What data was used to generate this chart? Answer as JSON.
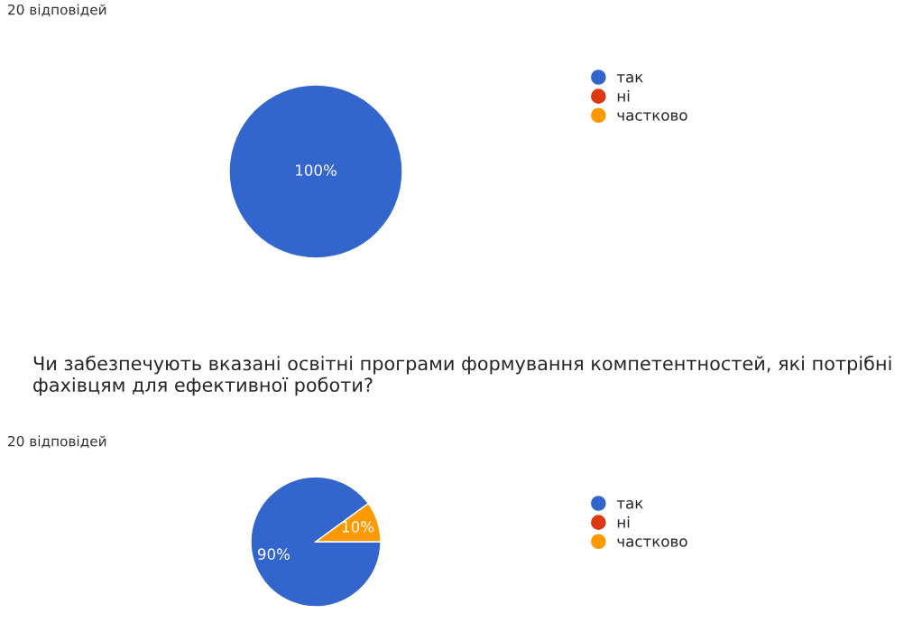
{
  "chart_data": [
    {
      "type": "pie",
      "subtitle": "20 відповідей",
      "categories": [
        "так",
        "ні",
        "частково"
      ],
      "values": [
        100,
        0,
        0
      ],
      "colors": [
        "#3366cc",
        "#dc3912",
        "#ff9900"
      ],
      "value_labels": [
        "100%",
        null,
        null
      ],
      "legend": "right"
    },
    {
      "type": "pie",
      "title": "Чи забезпечують вказані освітні програми формування компетентностей, які потрібні фахівцям для ефективної роботи?",
      "subtitle": "20 відповідей",
      "categories": [
        "так",
        "ні",
        "частково"
      ],
      "values": [
        90,
        0,
        10
      ],
      "colors": [
        "#3366cc",
        "#dc3912",
        "#ff9900"
      ],
      "value_labels": [
        "90%",
        null,
        "10%"
      ],
      "legend": "right"
    }
  ]
}
